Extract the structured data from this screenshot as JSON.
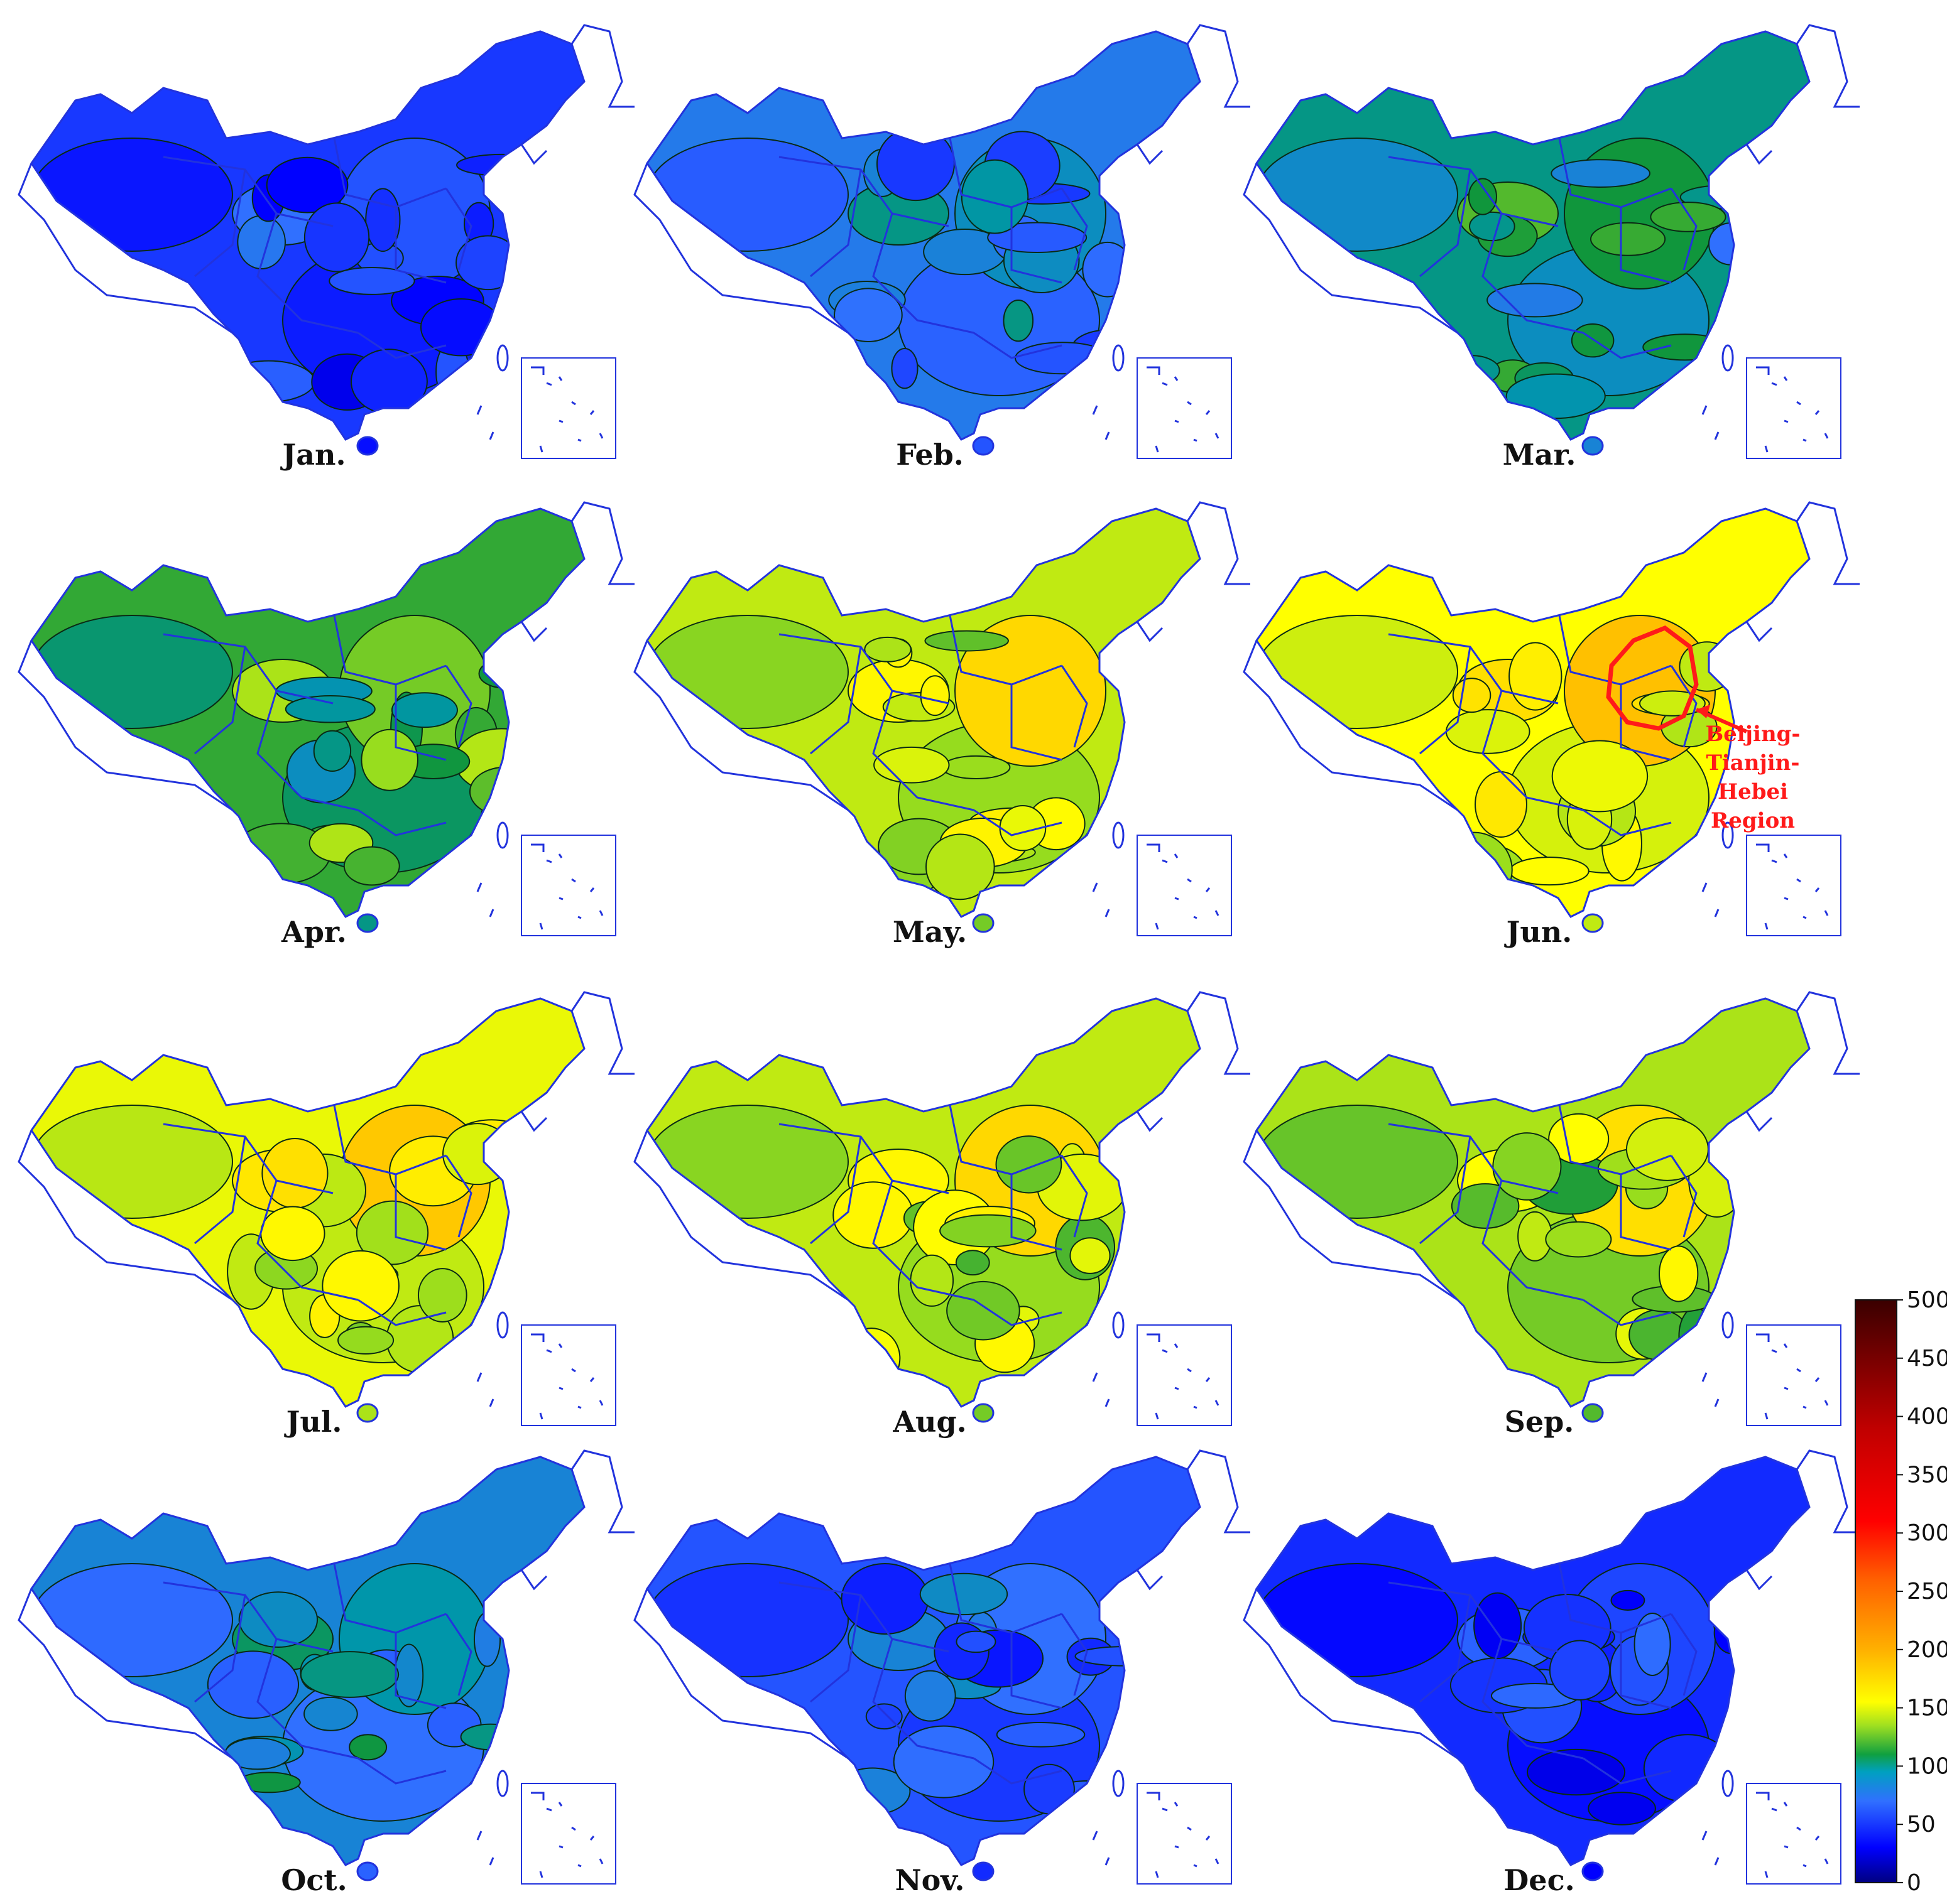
{
  "panels": [
    {
      "label": "Jan.",
      "level": 50
    },
    {
      "label": "Feb.",
      "level": 75
    },
    {
      "label": "Mar.",
      "level": 95
    },
    {
      "label": "Apr.",
      "level": 110
    },
    {
      "label": "May.",
      "level": 135
    },
    {
      "label": "Jun.",
      "level": 150
    },
    {
      "label": "Jul.",
      "level": 145
    },
    {
      "label": "Aug.",
      "level": 135
    },
    {
      "label": "Sep.",
      "level": 130
    },
    {
      "label": "Oct.",
      "level": 80
    },
    {
      "label": "Nov.",
      "level": 60
    },
    {
      "label": "Dec.",
      "level": 45
    }
  ],
  "colorbar": {
    "min": 0,
    "max": 500,
    "ticks": [
      "500",
      "450",
      "400",
      "350",
      "300",
      "250",
      "200",
      "150",
      "100",
      "50",
      "0"
    ]
  },
  "annotation": {
    "panel_index": 5,
    "lines": [
      "Beijing-",
      "Tianjin-",
      "Hebei",
      "Region"
    ],
    "color": "#ff1a1a"
  },
  "colors": {
    "boundary": "#2233dd",
    "contour": "#0a2a14",
    "jet_stops": [
      "#000080",
      "#0000ff",
      "#00bfff",
      "#00c080",
      "#90e040",
      "#ffff00",
      "#ff8000",
      "#ff0000",
      "#800000"
    ]
  }
}
